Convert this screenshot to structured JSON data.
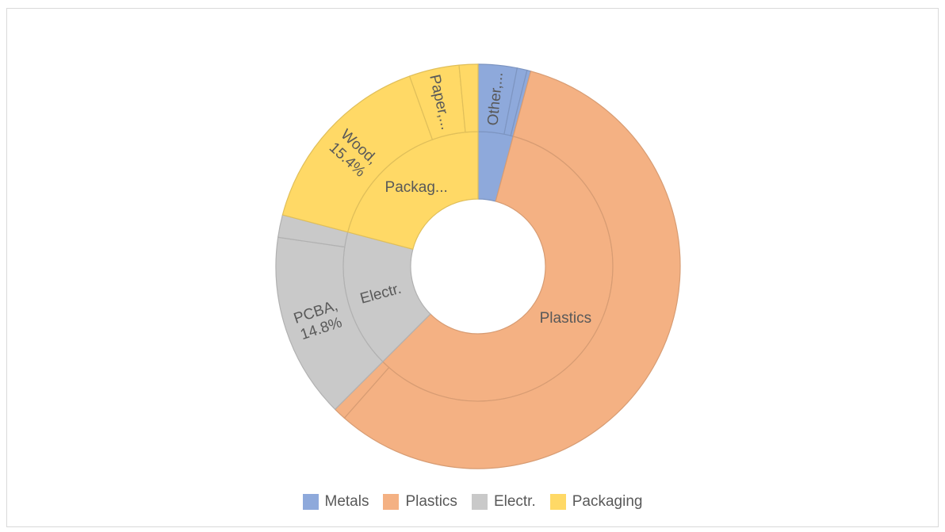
{
  "chart_data": {
    "type": "sunburst",
    "title": "",
    "inner_ring": [
      {
        "name": "Metals",
        "value": 4.2,
        "label": "",
        "color": "#8ea9db"
      },
      {
        "name": "Plastics",
        "value": 58.3,
        "label": "Plastics",
        "color": "#f4b183"
      },
      {
        "name": "Electr.",
        "value": 16.6,
        "label": "Electr.",
        "color": "#c9c9c9"
      },
      {
        "name": "Packaging",
        "value": 20.9,
        "label": "Packag...",
        "color": "#ffd966"
      }
    ],
    "outer_ring": [
      {
        "name": "Metals",
        "value": 3.1,
        "label": "Other,...",
        "color": "#8ea9db"
      },
      {
        "name": "Metals",
        "value": 0.8,
        "label": "",
        "color": "#8ea9db"
      },
      {
        "name": "Metals",
        "value": 0.3,
        "label": "",
        "color": "#8ea9db"
      },
      {
        "name": "Plastics",
        "value": 57.3,
        "label": "",
        "color": "#f4b183"
      },
      {
        "name": "Plastics",
        "value": 1.0,
        "label": "",
        "color": "#f4b183"
      },
      {
        "name": "Electr.",
        "value": 14.8,
        "label": "PCBA,|14.8%",
        "color": "#c9c9c9"
      },
      {
        "name": "Electr.",
        "value": 1.8,
        "label": "",
        "color": "#c9c9c9"
      },
      {
        "name": "Packaging",
        "value": 15.4,
        "label": "Wood,|15.4%",
        "color": "#ffd966"
      },
      {
        "name": "Packaging",
        "value": 4.0,
        "label": "Paper,...",
        "color": "#ffd966"
      },
      {
        "name": "Packaging",
        "value": 1.5,
        "label": "",
        "color": "#ffd966"
      }
    ],
    "legend": [
      {
        "name": "Metals",
        "color": "#8ea9db"
      },
      {
        "name": "Plastics",
        "color": "#f4b183"
      },
      {
        "name": "Electr.",
        "color": "#c9c9c9"
      },
      {
        "name": "Packaging",
        "color": "#ffd966"
      }
    ],
    "legend_position": "bottom"
  }
}
